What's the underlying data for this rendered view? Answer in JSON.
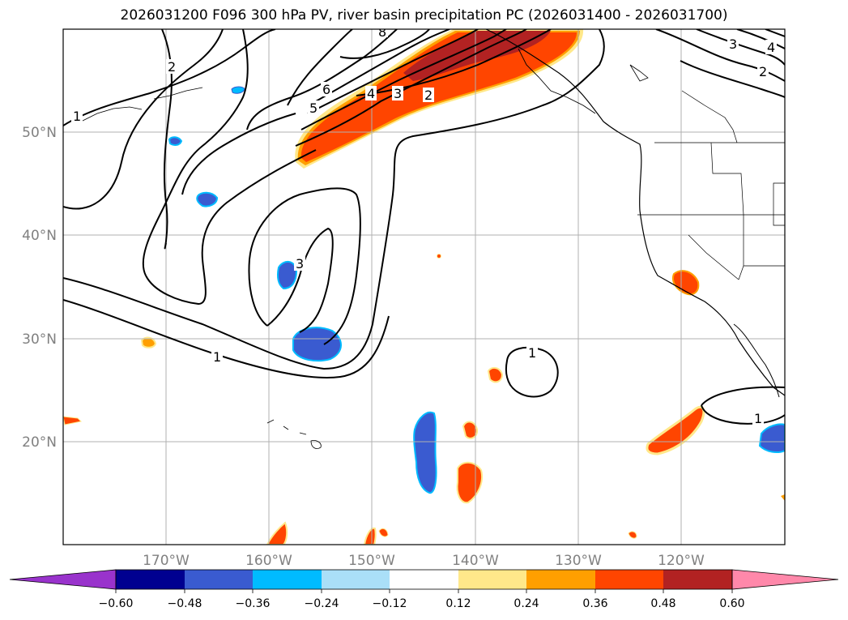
{
  "title": "2026031200 F096 300 hPa PV, river basin precipitation PC (2026031400 - 2026031700)",
  "map": {
    "lat_labels": [
      "50°N",
      "40°N",
      "30°N",
      "20°N"
    ],
    "lon_labels": [
      "170°W",
      "160°W",
      "150°W",
      "140°W",
      "130°W",
      "120°W"
    ],
    "pv_contour_labels": [
      "1",
      "2",
      "3",
      "4",
      "5",
      "6",
      "2",
      "3",
      "1",
      "1",
      "1",
      "2",
      "3",
      "4",
      "8"
    ]
  },
  "colorbar": {
    "ticks": [
      "−0.60",
      "−0.48",
      "−0.36",
      "−0.24",
      "−0.12",
      "0.12",
      "0.24",
      "0.36",
      "0.48",
      "0.60"
    ],
    "colors": [
      "#9933cc",
      "#000090",
      "#3a5bd0",
      "#00bbff",
      "#aadff8",
      "#ffffff",
      "#ffe88a",
      "#ff9f00",
      "#ff4500",
      "#b22222",
      "#ff88aa"
    ]
  }
}
